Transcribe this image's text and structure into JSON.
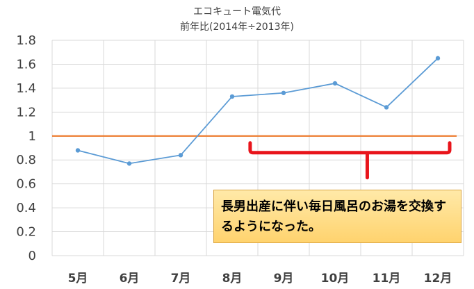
{
  "chart_data": {
    "type": "line",
    "title": "エコキュート電気代",
    "subtitle": "前年比(2014年÷2013年)",
    "categories": [
      "5月",
      "6月",
      "7月",
      "8月",
      "9月",
      "10月",
      "11月",
      "12月"
    ],
    "series": [
      {
        "values": [
          0.88,
          0.77,
          0.84,
          1.33,
          1.36,
          1.44,
          1.24,
          1.65
        ],
        "color": "#5b9bd5"
      }
    ],
    "reference_line": {
      "value": 1,
      "color": "#ed7d31"
    },
    "yticks": [
      "0",
      "0.2",
      "0.4",
      "0.6",
      "0.8",
      "1",
      "1.2",
      "1.4",
      "1.6",
      "1.8"
    ],
    "ylim": [
      0,
      1.8
    ],
    "grid": true,
    "annotation": {
      "text": "長男出産に伴い毎日風呂のお湯を交換するようになった。",
      "bracket_color": "#e8141b",
      "box_fill": "#ffdc7f"
    }
  }
}
